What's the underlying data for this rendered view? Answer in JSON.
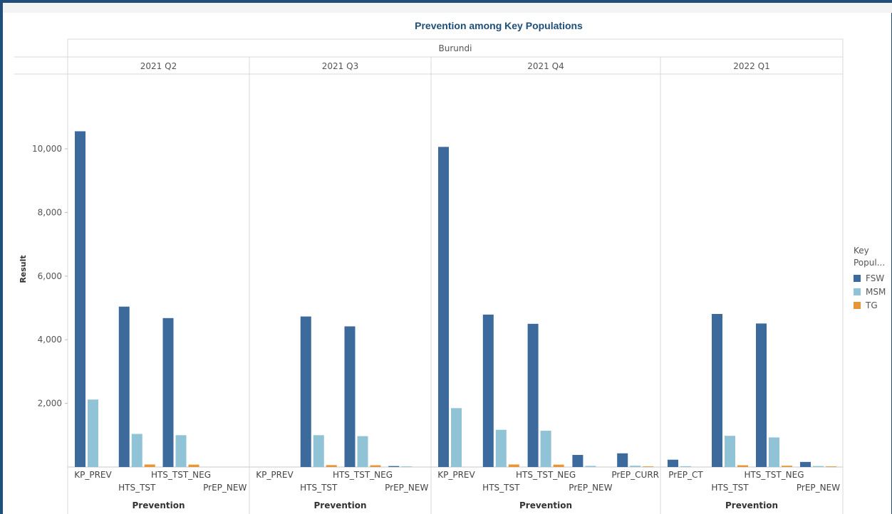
{
  "chart_data": {
    "type": "bar",
    "title": "Prevention among Key Populations",
    "country": "Burundi",
    "ylabel": "Result",
    "xlabel": "Prevention",
    "ylim": [
      0,
      11500
    ],
    "yticks": [
      2000,
      4000,
      6000,
      8000,
      10000
    ],
    "ytick_labels": [
      "2,000",
      "4,000",
      "6,000",
      "8,000",
      "10,000"
    ],
    "grid": false,
    "legend_position": "right",
    "legend_title": "Key Popul...",
    "series": [
      {
        "name": "FSW",
        "color": "#3c6a9c"
      },
      {
        "name": "MSM",
        "color": "#8fc3d5"
      },
      {
        "name": "TG",
        "color": "#e8953a"
      }
    ],
    "panels": [
      {
        "label": "2021 Q2",
        "groups": [
          {
            "category": "KP_PREV",
            "values": [
              10550,
              2120,
              0
            ]
          },
          {
            "category": "HTS_TST",
            "values": [
              5040,
              1040,
              80
            ]
          },
          {
            "category": "HTS_TST_NEG",
            "values": [
              4680,
              1000,
              75
            ]
          },
          {
            "category": "PrEP_NEW",
            "values": [
              0,
              0,
              0
            ]
          }
        ]
      },
      {
        "label": "2021 Q3",
        "groups": [
          {
            "category": "KP_PREV",
            "values": [
              0,
              0,
              0
            ]
          },
          {
            "category": "HTS_TST",
            "values": [
              4730,
              1000,
              60
            ]
          },
          {
            "category": "HTS_TST_NEG",
            "values": [
              4420,
              970,
              55
            ]
          },
          {
            "category": "PrEP_NEW",
            "values": [
              30,
              20,
              0
            ]
          }
        ]
      },
      {
        "label": "2021 Q4",
        "groups": [
          {
            "category": "KP_PREV",
            "values": [
              10060,
              1850,
              0
            ]
          },
          {
            "category": "HTS_TST",
            "values": [
              4790,
              1170,
              80
            ]
          },
          {
            "category": "HTS_TST_NEG",
            "values": [
              4500,
              1140,
              75
            ]
          },
          {
            "category": "PrEP_NEW",
            "values": [
              380,
              35,
              0
            ]
          },
          {
            "category": "PrEP_CURR",
            "values": [
              430,
              40,
              20
            ]
          }
        ]
      },
      {
        "label": "2022 Q1",
        "groups": [
          {
            "category": "PrEP_CT",
            "values": [
              230,
              25,
              0
            ]
          },
          {
            "category": "HTS_TST",
            "values": [
              4810,
              980,
              55
            ]
          },
          {
            "category": "HTS_TST_NEG",
            "values": [
              4510,
              930,
              40
            ]
          },
          {
            "category": "PrEP_NEW",
            "values": [
              160,
              30,
              20
            ]
          }
        ]
      }
    ]
  }
}
